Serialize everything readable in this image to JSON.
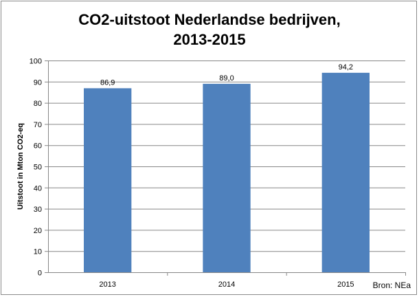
{
  "chart_data": {
    "type": "bar",
    "title_line1": "CO2-uitstoot Nederlandse bedrijven,",
    "title_line2": "2013-2015",
    "categories": [
      "2013",
      "2014",
      "2015"
    ],
    "values": [
      86.9,
      89.0,
      94.2
    ],
    "value_labels": [
      "86,9",
      "89,0",
      "94,2"
    ],
    "ylabel": "Uitstoot in Mton CO2-eq",
    "xlabel": "",
    "ylim": [
      0,
      100
    ],
    "y_ticks": [
      0,
      10,
      20,
      30,
      40,
      50,
      60,
      70,
      80,
      90,
      100
    ],
    "grid": true,
    "legend": "none",
    "bar_color": "#4f81bd",
    "source_note": "Bron: NEa"
  }
}
